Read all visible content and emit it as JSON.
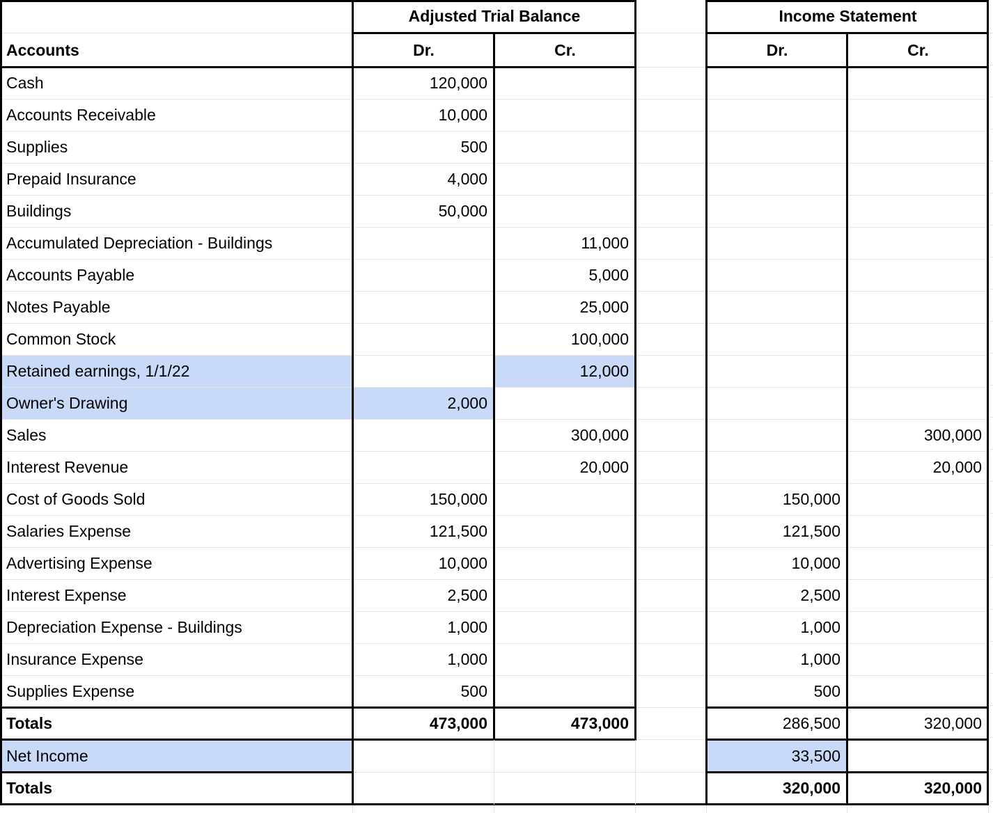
{
  "table": {
    "section_headers": {
      "adjusted_trial_balance": "Adjusted Trial Balance",
      "income_statement": "Income Statement"
    },
    "header_row": {
      "accounts": "Accounts",
      "atb_dr": "Dr.",
      "atb_cr": "Cr.",
      "is_dr": "Dr.",
      "is_cr": "Cr."
    },
    "rows": [
      {
        "account": "Cash",
        "atb_dr": "120,000",
        "atb_cr": "",
        "is_dr": "",
        "is_cr": ""
      },
      {
        "account": "Accounts Receivable",
        "atb_dr": "10,000",
        "atb_cr": "",
        "is_dr": "",
        "is_cr": ""
      },
      {
        "account": "Supplies",
        "atb_dr": "500",
        "atb_cr": "",
        "is_dr": "",
        "is_cr": ""
      },
      {
        "account": "Prepaid Insurance",
        "atb_dr": "4,000",
        "atb_cr": "",
        "is_dr": "",
        "is_cr": ""
      },
      {
        "account": "Buildings",
        "atb_dr": "50,000",
        "atb_cr": "",
        "is_dr": "",
        "is_cr": ""
      },
      {
        "account": "Accumulated Depreciation - Buildings",
        "atb_dr": "",
        "atb_cr": "11,000",
        "is_dr": "",
        "is_cr": ""
      },
      {
        "account": "Accounts Payable",
        "atb_dr": "",
        "atb_cr": "5,000",
        "is_dr": "",
        "is_cr": ""
      },
      {
        "account": "Notes Payable",
        "atb_dr": "",
        "atb_cr": "25,000",
        "is_dr": "",
        "is_cr": ""
      },
      {
        "account": "Common Stock",
        "atb_dr": "",
        "atb_cr": "100,000",
        "is_dr": "",
        "is_cr": ""
      },
      {
        "account": "Retained earnings, 1/1/22",
        "atb_dr": "",
        "atb_cr": "12,000",
        "is_dr": "",
        "is_cr": "",
        "highlight": [
          "account",
          "atb_cr"
        ]
      },
      {
        "account": "Owner's Drawing",
        "atb_dr": "2,000",
        "atb_cr": "",
        "is_dr": "",
        "is_cr": "",
        "highlight": [
          "account",
          "atb_dr"
        ]
      },
      {
        "account": "Sales",
        "atb_dr": "",
        "atb_cr": "300,000",
        "is_dr": "",
        "is_cr": "300,000"
      },
      {
        "account": "Interest Revenue",
        "atb_dr": "",
        "atb_cr": "20,000",
        "is_dr": "",
        "is_cr": "20,000"
      },
      {
        "account": "Cost of Goods Sold",
        "atb_dr": "150,000",
        "atb_cr": "",
        "is_dr": "150,000",
        "is_cr": ""
      },
      {
        "account": "Salaries Expense",
        "atb_dr": "121,500",
        "atb_cr": "",
        "is_dr": "121,500",
        "is_cr": ""
      },
      {
        "account": "Advertising Expense",
        "atb_dr": "10,000",
        "atb_cr": "",
        "is_dr": "10,000",
        "is_cr": ""
      },
      {
        "account": "Interest Expense",
        "atb_dr": "2,500",
        "atb_cr": "",
        "is_dr": "2,500",
        "is_cr": ""
      },
      {
        "account": "Depreciation Expense - Buildings",
        "atb_dr": "1,000",
        "atb_cr": "",
        "is_dr": "1,000",
        "is_cr": ""
      },
      {
        "account": "Insurance Expense",
        "atb_dr": "1,000",
        "atb_cr": "",
        "is_dr": "1,000",
        "is_cr": ""
      },
      {
        "account": "Supplies Expense",
        "atb_dr": "500",
        "atb_cr": "",
        "is_dr": "500",
        "is_cr": ""
      }
    ],
    "totals_row_1": {
      "label": "Totals",
      "atb_dr": "473,000",
      "atb_cr": "473,000",
      "is_dr": "286,500",
      "is_cr": "320,000"
    },
    "net_income_row": {
      "label": "Net Income",
      "is_dr": "33,500"
    },
    "totals_row_2": {
      "label": "Totals",
      "is_dr": "320,000",
      "is_cr": "320,000"
    },
    "colors": {
      "highlight": "#c9daf8",
      "gridline": "#e3e3e3",
      "border": "#000000"
    }
  }
}
